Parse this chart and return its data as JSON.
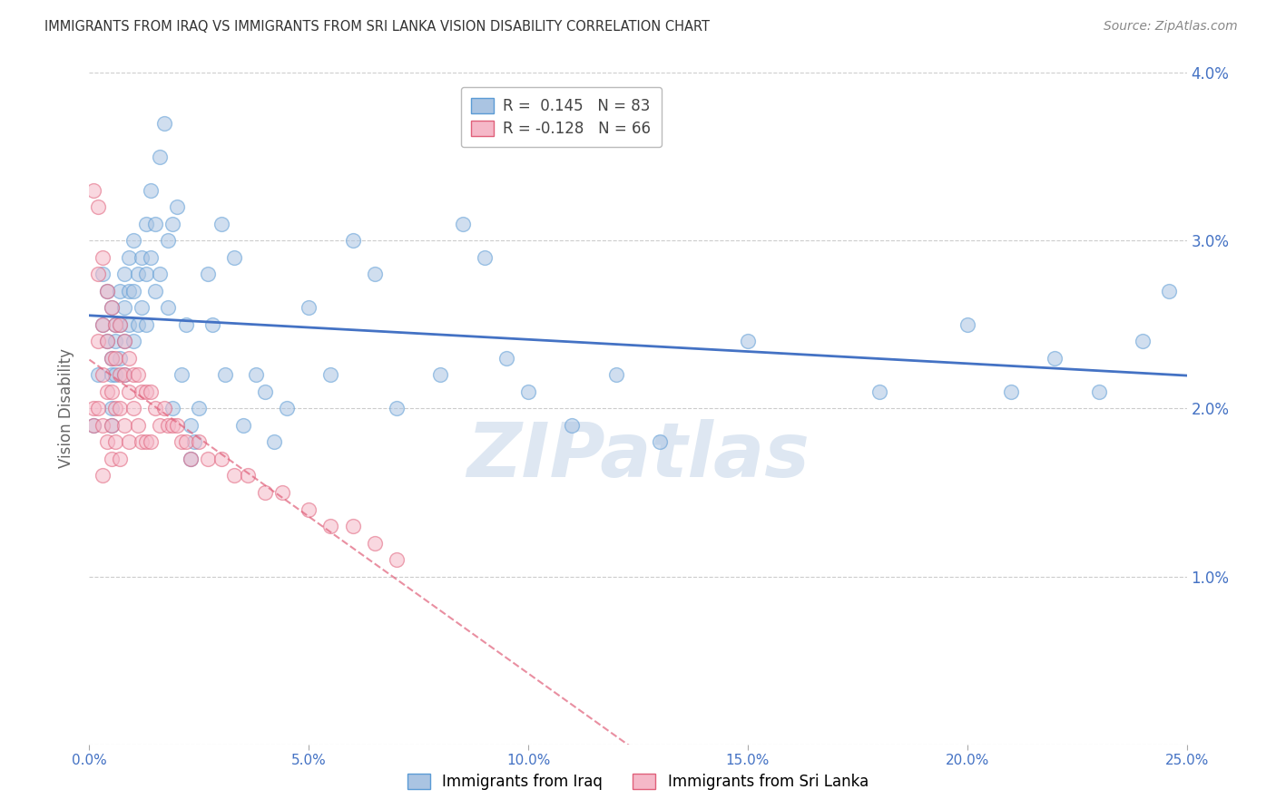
{
  "title": "IMMIGRANTS FROM IRAQ VS IMMIGRANTS FROM SRI LANKA VISION DISABILITY CORRELATION CHART",
  "source": "Source: ZipAtlas.com",
  "ylabel": "Vision Disability",
  "x_min": 0.0,
  "x_max": 0.25,
  "y_min": 0.0,
  "y_max": 0.04,
  "x_ticks": [
    0.0,
    0.05,
    0.1,
    0.15,
    0.2,
    0.25
  ],
  "x_tick_labels": [
    "0.0%",
    "5.0%",
    "10.0%",
    "15.0%",
    "20.0%",
    "25.0%"
  ],
  "y_ticks": [
    0.0,
    0.01,
    0.02,
    0.03,
    0.04
  ],
  "y_tick_labels_right": [
    "",
    "1.0%",
    "2.0%",
    "3.0%",
    "4.0%"
  ],
  "iraq_color": "#aac4e2",
  "iraq_edge_color": "#5b9bd5",
  "sri_lanka_color": "#f5b8c8",
  "sri_lanka_edge_color": "#e0607a",
  "iraq_trend_color": "#4472c4",
  "sri_lanka_trend_color": "#e0607a",
  "watermark": "ZIPatlas",
  "watermark_color": "#c8d8ea",
  "background_color": "#ffffff",
  "grid_color": "#cccccc",
  "tick_label_color": "#4472c4",
  "title_color": "#333333",
  "iraq_points_x": [
    0.001,
    0.002,
    0.003,
    0.003,
    0.004,
    0.004,
    0.005,
    0.005,
    0.005,
    0.005,
    0.005,
    0.006,
    0.006,
    0.006,
    0.007,
    0.007,
    0.007,
    0.008,
    0.008,
    0.008,
    0.008,
    0.009,
    0.009,
    0.009,
    0.01,
    0.01,
    0.01,
    0.011,
    0.011,
    0.012,
    0.012,
    0.013,
    0.013,
    0.013,
    0.014,
    0.014,
    0.015,
    0.015,
    0.016,
    0.016,
    0.017,
    0.018,
    0.018,
    0.019,
    0.019,
    0.02,
    0.021,
    0.022,
    0.023,
    0.023,
    0.024,
    0.025,
    0.027,
    0.028,
    0.03,
    0.031,
    0.033,
    0.035,
    0.038,
    0.04,
    0.042,
    0.045,
    0.05,
    0.055,
    0.06,
    0.065,
    0.07,
    0.08,
    0.085,
    0.09,
    0.095,
    0.1,
    0.11,
    0.12,
    0.13,
    0.15,
    0.18,
    0.2,
    0.21,
    0.22,
    0.23,
    0.24,
    0.246
  ],
  "iraq_points_y": [
    0.019,
    0.022,
    0.025,
    0.028,
    0.027,
    0.024,
    0.026,
    0.023,
    0.022,
    0.02,
    0.019,
    0.025,
    0.024,
    0.022,
    0.027,
    0.025,
    0.023,
    0.028,
    0.026,
    0.024,
    0.022,
    0.029,
    0.027,
    0.025,
    0.03,
    0.027,
    0.024,
    0.028,
    0.025,
    0.029,
    0.026,
    0.031,
    0.028,
    0.025,
    0.033,
    0.029,
    0.031,
    0.027,
    0.035,
    0.028,
    0.037,
    0.03,
    0.026,
    0.031,
    0.02,
    0.032,
    0.022,
    0.025,
    0.019,
    0.017,
    0.018,
    0.02,
    0.028,
    0.025,
    0.031,
    0.022,
    0.029,
    0.019,
    0.022,
    0.021,
    0.018,
    0.02,
    0.026,
    0.022,
    0.03,
    0.028,
    0.02,
    0.022,
    0.031,
    0.029,
    0.023,
    0.021,
    0.019,
    0.022,
    0.018,
    0.024,
    0.021,
    0.025,
    0.021,
    0.023,
    0.021,
    0.024,
    0.027
  ],
  "sri_lanka_points_x": [
    0.001,
    0.001,
    0.001,
    0.002,
    0.002,
    0.002,
    0.002,
    0.003,
    0.003,
    0.003,
    0.003,
    0.003,
    0.004,
    0.004,
    0.004,
    0.004,
    0.005,
    0.005,
    0.005,
    0.005,
    0.005,
    0.006,
    0.006,
    0.006,
    0.006,
    0.007,
    0.007,
    0.007,
    0.007,
    0.008,
    0.008,
    0.008,
    0.009,
    0.009,
    0.009,
    0.01,
    0.01,
    0.011,
    0.011,
    0.012,
    0.012,
    0.013,
    0.013,
    0.014,
    0.014,
    0.015,
    0.016,
    0.017,
    0.018,
    0.019,
    0.02,
    0.021,
    0.022,
    0.023,
    0.025,
    0.027,
    0.03,
    0.033,
    0.036,
    0.04,
    0.044,
    0.05,
    0.055,
    0.06,
    0.065,
    0.07
  ],
  "sri_lanka_points_y": [
    0.02,
    0.033,
    0.019,
    0.032,
    0.028,
    0.024,
    0.02,
    0.029,
    0.025,
    0.022,
    0.019,
    0.016,
    0.027,
    0.024,
    0.021,
    0.018,
    0.026,
    0.023,
    0.021,
    0.019,
    0.017,
    0.025,
    0.023,
    0.02,
    0.018,
    0.025,
    0.022,
    0.02,
    0.017,
    0.024,
    0.022,
    0.019,
    0.023,
    0.021,
    0.018,
    0.022,
    0.02,
    0.022,
    0.019,
    0.021,
    0.018,
    0.021,
    0.018,
    0.021,
    0.018,
    0.02,
    0.019,
    0.02,
    0.019,
    0.019,
    0.019,
    0.018,
    0.018,
    0.017,
    0.018,
    0.017,
    0.017,
    0.016,
    0.016,
    0.015,
    0.015,
    0.014,
    0.013,
    0.013,
    0.012,
    0.011
  ],
  "legend_iraq_label": "R =  0.145   N = 83",
  "legend_sri_lanka_label": "R = -0.128   N = 66",
  "bottom_legend_iraq": "Immigrants from Iraq",
  "bottom_legend_sri_lanka": "Immigrants from Sri Lanka",
  "marker_size": 130,
  "alpha": 0.55
}
